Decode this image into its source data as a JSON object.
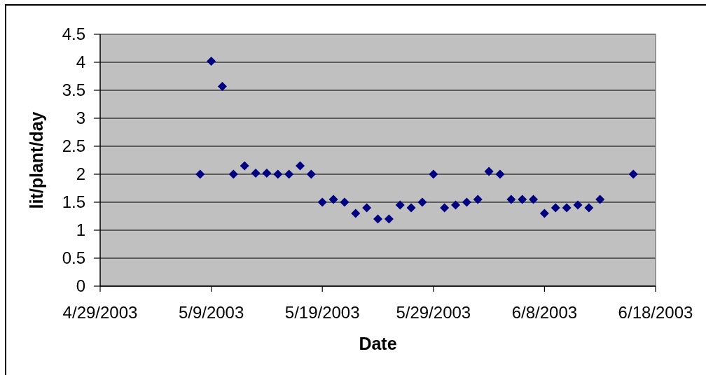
{
  "chart_data": {
    "type": "scatter",
    "xlabel": "Date",
    "ylabel": "lit/plant/day",
    "x": [
      "2003-05-08",
      "2003-05-09",
      "2003-05-10",
      "2003-05-11",
      "2003-05-12",
      "2003-05-13",
      "2003-05-14",
      "2003-05-15",
      "2003-05-16",
      "2003-05-17",
      "2003-05-18",
      "2003-05-19",
      "2003-05-20",
      "2003-05-21",
      "2003-05-22",
      "2003-05-23",
      "2003-05-24",
      "2003-05-25",
      "2003-05-26",
      "2003-05-27",
      "2003-05-28",
      "2003-05-29",
      "2003-05-30",
      "2003-05-31",
      "2003-06-01",
      "2003-06-02",
      "2003-06-03",
      "2003-06-04",
      "2003-06-05",
      "2003-06-06",
      "2003-06-07",
      "2003-06-08",
      "2003-06-09",
      "2003-06-10",
      "2003-06-11",
      "2003-06-12",
      "2003-06-13",
      "2003-06-16"
    ],
    "values": [
      2.0,
      4.02,
      3.57,
      2.0,
      2.15,
      2.02,
      2.02,
      2.0,
      2.0,
      2.15,
      2.0,
      1.5,
      1.55,
      1.5,
      1.3,
      1.4,
      1.2,
      1.2,
      1.45,
      1.4,
      1.5,
      2.0,
      1.4,
      1.45,
      1.5,
      1.55,
      2.05,
      2.0,
      1.55,
      1.55,
      1.55,
      1.3,
      1.4,
      1.4,
      1.45,
      1.4,
      1.55,
      2.0
    ],
    "color": "#000080",
    "marker": "diamond",
    "grid": "y",
    "xlim": [
      "2003-04-29",
      "2003-06-18"
    ],
    "xticks": [
      {
        "value": "2003-04-29",
        "label": "4/29/2003"
      },
      {
        "value": "2003-05-09",
        "label": "5/9/2003"
      },
      {
        "value": "2003-05-19",
        "label": "5/19/2003"
      },
      {
        "value": "2003-05-29",
        "label": "5/29/2003"
      },
      {
        "value": "2003-06-08",
        "label": "6/8/2003"
      },
      {
        "value": "2003-06-18",
        "label": "6/18/2003"
      }
    ],
    "ylim": [
      0,
      4.5
    ],
    "yticks": [
      0,
      0.5,
      1,
      1.5,
      2,
      2.5,
      3,
      3.5,
      4,
      4.5
    ]
  }
}
